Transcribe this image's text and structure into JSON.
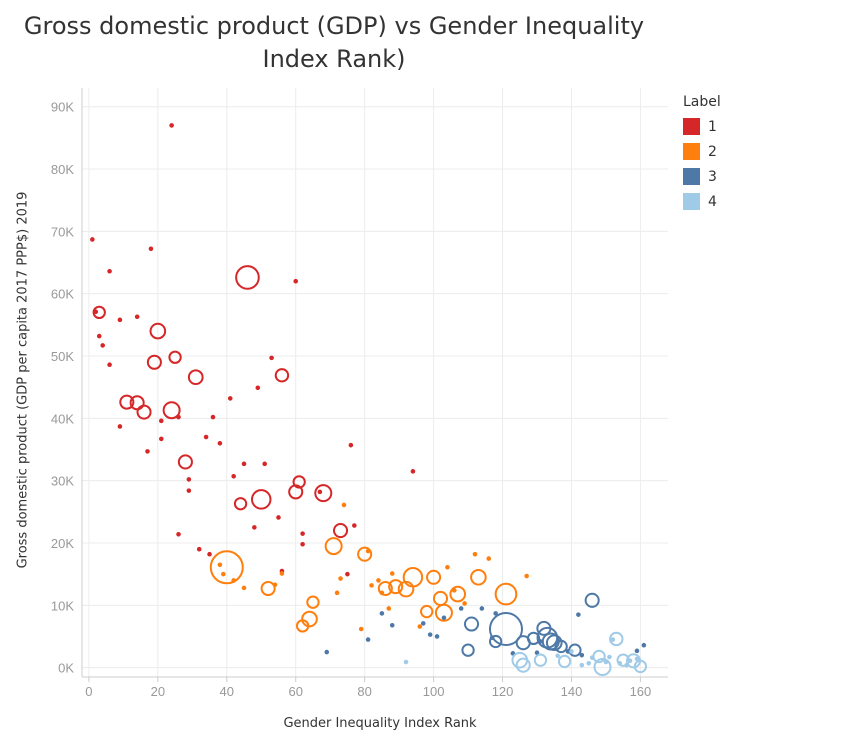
{
  "chart_data": {
    "type": "scatter",
    "title_line1": "Gross domestic product (GDP) vs Gender Inequality",
    "title_line2": "Index Rank)",
    "xlabel": "Gender Inequality Index Rank",
    "ylabel": "Gross domestic product (GDP per capita 2017 PPP$) 2019",
    "xlim": [
      -2,
      168
    ],
    "ylim": [
      -1500,
      93000
    ],
    "x_ticks": [
      0,
      20,
      40,
      60,
      80,
      100,
      120,
      140,
      160
    ],
    "y_ticks": [
      0,
      10000,
      20000,
      30000,
      40000,
      50000,
      60000,
      70000,
      80000,
      90000
    ],
    "y_tick_labels": [
      "0K",
      "10K",
      "20K",
      "30K",
      "40K",
      "50K",
      "60K",
      "70K",
      "80K",
      "90K"
    ],
    "grid": true,
    "legend": {
      "title": "Label",
      "placement": "right",
      "items": [
        {
          "label": "1",
          "color": "#d62728"
        },
        {
          "label": "2",
          "color": "#ff7f0e"
        },
        {
          "label": "3",
          "color": "#4e79a7"
        },
        {
          "label": "4",
          "color": "#a0cbe8"
        }
      ]
    },
    "series": [
      {
        "name": "1",
        "color": "#d62728",
        "points": [
          [
            1,
            68700,
            1
          ],
          [
            2,
            57100,
            1
          ],
          [
            3,
            53200,
            1
          ],
          [
            4,
            51700,
            1
          ],
          [
            3,
            57000,
            1.5
          ],
          [
            6,
            63600,
            1
          ],
          [
            6,
            48600,
            1
          ],
          [
            9,
            55800,
            1
          ],
          [
            9,
            38700,
            1
          ],
          [
            11,
            42600,
            2
          ],
          [
            14,
            42500,
            2
          ],
          [
            16,
            41000,
            2
          ],
          [
            14,
            56300,
            1
          ],
          [
            17,
            34700,
            1
          ],
          [
            18,
            67200,
            1
          ],
          [
            19,
            49000,
            2
          ],
          [
            20,
            54000,
            2.5
          ],
          [
            21,
            36700,
            1
          ],
          [
            21,
            39600,
            1
          ],
          [
            24,
            41300,
            3
          ],
          [
            24,
            87000,
            0.8
          ],
          [
            25,
            49800,
            1.5
          ],
          [
            26,
            40200,
            1.2
          ],
          [
            26,
            21400,
            1
          ],
          [
            28,
            33000,
            2
          ],
          [
            29,
            30200,
            1.2
          ],
          [
            29,
            28400,
            1
          ],
          [
            31,
            46600,
            2.2
          ],
          [
            32,
            19000,
            1
          ],
          [
            34,
            37000,
            1
          ],
          [
            35,
            18200,
            1
          ],
          [
            36,
            40200,
            1.2
          ],
          [
            38,
            36000,
            1
          ],
          [
            41,
            43200,
            1
          ],
          [
            42,
            30700,
            1
          ],
          [
            44,
            26300,
            1.5
          ],
          [
            45,
            32700,
            1
          ],
          [
            46,
            62600,
            6
          ],
          [
            48,
            22500,
            1
          ],
          [
            49,
            44900,
            1
          ],
          [
            50,
            27000,
            4
          ],
          [
            51,
            32700,
            1.2
          ],
          [
            53,
            49700,
            1
          ],
          [
            55,
            24100,
            1.3
          ],
          [
            56,
            46900,
            1.8
          ],
          [
            56,
            15500,
            1
          ],
          [
            60,
            28200,
            2
          ],
          [
            60,
            62000,
            1
          ],
          [
            61,
            29800,
            1.5
          ],
          [
            62,
            19800,
            1
          ],
          [
            62,
            21500,
            1
          ],
          [
            67,
            28200,
            1
          ],
          [
            68,
            28000,
            3
          ],
          [
            73,
            22000,
            2
          ],
          [
            75,
            15000,
            1
          ],
          [
            76,
            35700,
            1
          ],
          [
            77,
            22800,
            1
          ],
          [
            94,
            31500,
            1
          ]
        ]
      },
      {
        "name": "2",
        "color": "#ff7f0e",
        "points": [
          [
            38,
            16500,
            1
          ],
          [
            39,
            15000,
            1
          ],
          [
            40,
            16100,
            12
          ],
          [
            42,
            14000,
            1
          ],
          [
            45,
            12800,
            1
          ],
          [
            52,
            12700,
            2
          ],
          [
            54,
            13300,
            1
          ],
          [
            56,
            15100,
            1
          ],
          [
            62,
            6700,
            1.5
          ],
          [
            64,
            7800,
            2.5
          ],
          [
            65,
            10500,
            1.5
          ],
          [
            71,
            19500,
            3
          ],
          [
            72,
            12000,
            1
          ],
          [
            73,
            14300,
            1
          ],
          [
            74,
            26100,
            1
          ],
          [
            79,
            6200,
            1
          ],
          [
            80,
            18200,
            2
          ],
          [
            81,
            18700,
            1
          ],
          [
            82,
            13200,
            1
          ],
          [
            84,
            14000,
            1
          ],
          [
            85,
            12000,
            1.2
          ],
          [
            86,
            12700,
            2
          ],
          [
            87,
            9500,
            1
          ],
          [
            88,
            15100,
            1
          ],
          [
            89,
            13000,
            2
          ],
          [
            92,
            12600,
            2.5
          ],
          [
            94,
            14500,
            4
          ],
          [
            96,
            6600,
            1
          ],
          [
            98,
            9000,
            1.5
          ],
          [
            100,
            14500,
            2
          ],
          [
            102,
            11100,
            2
          ],
          [
            103,
            8800,
            3
          ],
          [
            104,
            16100,
            1
          ],
          [
            106,
            12400,
            1.2
          ],
          [
            107,
            11800,
            2.5
          ],
          [
            109,
            10300,
            1.2
          ],
          [
            112,
            18200,
            1.2
          ],
          [
            113,
            14500,
            2.5
          ],
          [
            116,
            17500,
            1
          ],
          [
            121,
            11800,
            5
          ],
          [
            127,
            14700,
            1
          ]
        ]
      },
      {
        "name": "3",
        "color": "#4e79a7",
        "points": [
          [
            69,
            2500,
            1.2
          ],
          [
            81,
            4500,
            1
          ],
          [
            85,
            8700,
            1
          ],
          [
            88,
            6800,
            1
          ],
          [
            97,
            7100,
            1
          ],
          [
            99,
            5300,
            1
          ],
          [
            101,
            5000,
            1.3
          ],
          [
            103,
            8000,
            1
          ],
          [
            108,
            9500,
            1
          ],
          [
            110,
            2800,
            1.5
          ],
          [
            111,
            7000,
            2
          ],
          [
            114,
            9500,
            1
          ],
          [
            117,
            4800,
            1
          ],
          [
            118,
            4200,
            1.5
          ],
          [
            118,
            8700,
            1
          ],
          [
            121,
            6200,
            12
          ],
          [
            123,
            2300,
            1
          ],
          [
            126,
            4000,
            2
          ],
          [
            129,
            4700,
            1.5
          ],
          [
            130,
            2400,
            1
          ],
          [
            131,
            4200,
            1
          ],
          [
            132,
            6300,
            2
          ],
          [
            133,
            4800,
            4.5
          ],
          [
            134,
            4200,
            3
          ],
          [
            135,
            4000,
            2.5
          ],
          [
            137,
            3400,
            1.5
          ],
          [
            139,
            2600,
            1
          ],
          [
            141,
            2800,
            1.5
          ],
          [
            142,
            8500,
            1
          ],
          [
            143,
            2000,
            1
          ],
          [
            146,
            10800,
            2
          ],
          [
            159,
            2700,
            1
          ],
          [
            161,
            3600,
            1.2
          ]
        ]
      },
      {
        "name": "4",
        "color": "#a0cbe8",
        "points": [
          [
            92,
            900,
            1
          ],
          [
            125,
            1200,
            2.5
          ],
          [
            126,
            400,
            2
          ],
          [
            131,
            1200,
            1.5
          ],
          [
            136,
            1900,
            1.2
          ],
          [
            138,
            1000,
            1.5
          ],
          [
            140,
            2600,
            1
          ],
          [
            143,
            400,
            1
          ],
          [
            145,
            700,
            1
          ],
          [
            146,
            1600,
            1.2
          ],
          [
            148,
            1800,
            1.5
          ],
          [
            149,
            100,
            3
          ],
          [
            150,
            900,
            1
          ],
          [
            151,
            1700,
            1
          ],
          [
            152,
            4500,
            1.3
          ],
          [
            153,
            4600,
            1.8
          ],
          [
            154,
            700,
            1
          ],
          [
            155,
            1200,
            1.5
          ],
          [
            156,
            400,
            1
          ],
          [
            157,
            1100,
            1.2
          ],
          [
            158,
            1100,
            2
          ],
          [
            159,
            1400,
            1.2
          ],
          [
            160,
            200,
            1.5
          ]
        ]
      }
    ]
  }
}
